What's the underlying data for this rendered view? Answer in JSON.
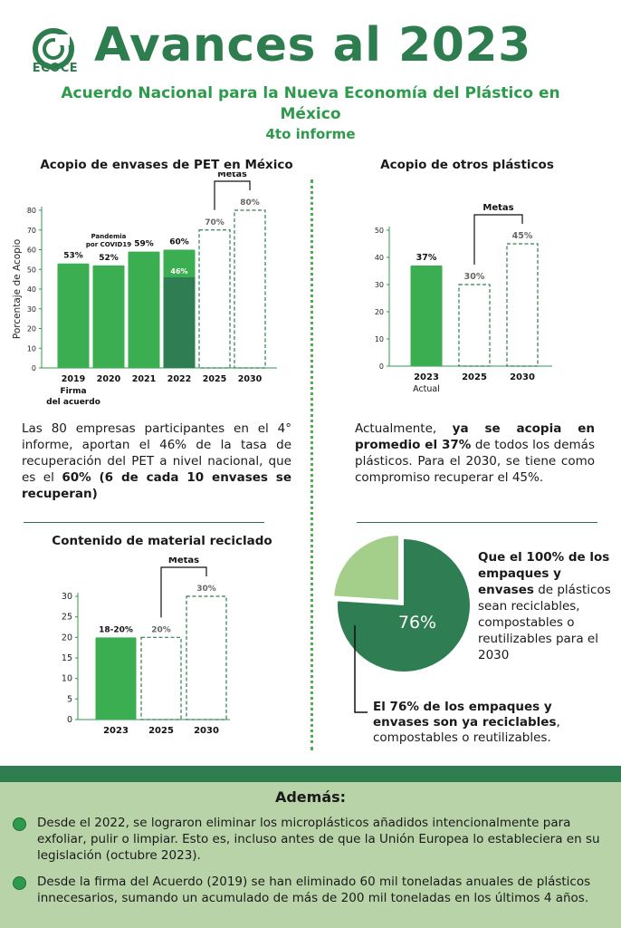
{
  "header": {
    "logo_text": "ECOCE",
    "title": "Avances al 2023",
    "subtitle": "Acuerdo Nacional para la Nueva Economía del Plástico en México",
    "subtitle2": "4to informe"
  },
  "pet_section": {
    "title": "Acopio de envases de PET en México",
    "paragraph": {
      "text": "Las 80 empresas participantes en el 4° informe, aportan el 46% de la tasa de recuperación del PET a nivel nacional,  que es el ",
      "bold": "60% (6 de cada 10 envases se recuperan)"
    }
  },
  "otros_section": {
    "title": "Acopio de otros plásticos",
    "paragraph": {
      "text1": "Actualmente, ",
      "bold": "ya se acopia en promedio el 37%",
      "text2": " de todos los demás plásticos. Para el 2030, se tiene como compromiso recuperar el 45%."
    }
  },
  "reciclado_section": {
    "title": "Contenido de material reciclado"
  },
  "pie_section": {
    "right_text_bold": "Que el 100% de los empaques y envases",
    "right_text": " de plásticos sean reciclables, compostables o reutilizables para el 2030",
    "bottom_text_bold": "El 76% de los empaques y envases son ya reciclables",
    "bottom_text": ", compostables o reutilizables."
  },
  "ademas": {
    "title": "Además:",
    "bullets": [
      "Desde el 2022, se lograron eliminar los microplásticos añadidos intencionalmente para exfoliar, pulir o limpiar. Esto es, incluso antes de que la Unión Europea lo estableciera en su legislación (octubre 2023).",
      "Desde la firma del Acuerdo (2019) se han eliminado 60 mil toneladas anuales de plásticos innecesarios, sumando un acumulado de más de 200 mil toneladas en los últimos 4 años."
    ]
  },
  "colors": {
    "brand": "#2e7d4f",
    "bar": "#3cae52",
    "bar_dark": "#2f7d52",
    "pie_main": "#2f7d52",
    "pie_light": "#a3cf8b"
  },
  "chart_data": [
    {
      "type": "bar",
      "title": "Acopio de envases de PET en México",
      "ylabel": "Porcentaje de Acopio",
      "ylim": [
        0,
        80
      ],
      "yticks": [
        0,
        10,
        20,
        30,
        40,
        50,
        60,
        70,
        80
      ],
      "categories": [
        "2019",
        "2020",
        "2021",
        "2022",
        "2025",
        "2030"
      ],
      "category_sublabels": [
        "Firma del acuerdo",
        "",
        "",
        "",
        "",
        ""
      ],
      "values": [
        53,
        52,
        59,
        60,
        70,
        80
      ],
      "value_labels": [
        "53%",
        "52%",
        "59%",
        "60%",
        "70%",
        "80%"
      ],
      "styles": [
        "actual",
        "actual",
        "actual",
        "actual",
        "meta",
        "meta"
      ],
      "inner_value": {
        "category": "2022",
        "value": 46,
        "label": "46%"
      },
      "annotations": [
        {
          "category": "2020",
          "text": "Pandemia por COVID19"
        }
      ],
      "bracket_label": "Metas",
      "bracket_categories": [
        "2025",
        "2030"
      ]
    },
    {
      "type": "bar",
      "title": "Acopio de otros plásticos",
      "ylim": [
        0,
        50
      ],
      "yticks": [
        0,
        10,
        20,
        30,
        40,
        50
      ],
      "categories": [
        "2023",
        "2025",
        "2030"
      ],
      "category_sublabels": [
        "Actual",
        "",
        ""
      ],
      "values": [
        37,
        30,
        45
      ],
      "value_labels": [
        "37%",
        "30%",
        "45%"
      ],
      "styles": [
        "actual",
        "meta",
        "meta"
      ],
      "bracket_label": "Metas",
      "bracket_categories": [
        "2025",
        "2030"
      ]
    },
    {
      "type": "bar",
      "title": "Contenido de material reciclado",
      "ylim": [
        0,
        30
      ],
      "yticks": [
        0,
        5,
        10,
        15,
        20,
        25,
        30
      ],
      "categories": [
        "2023",
        "2025",
        "2030"
      ],
      "category_sublabels": [
        "",
        "",
        ""
      ],
      "values": [
        20,
        20,
        30
      ],
      "value_labels": [
        "18-20%",
        "20%",
        "30%"
      ],
      "styles": [
        "actual",
        "meta",
        "meta"
      ],
      "bracket_label": "Metas",
      "bracket_categories": [
        "2025",
        "2030"
      ]
    },
    {
      "type": "pie",
      "slices": [
        {
          "label": "76%",
          "value": 76,
          "color": "#2f7d52"
        },
        {
          "label": "",
          "value": 24,
          "color": "#a3cf8b"
        }
      ]
    }
  ]
}
